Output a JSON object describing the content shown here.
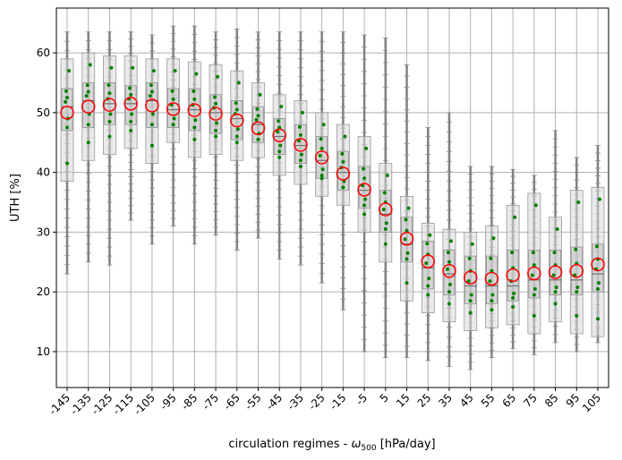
{
  "chart_data": {
    "type": "box",
    "xlabel": "circulation regimes - ",
    "xlabel_symbol": "ω",
    "xlabel_subscript": "500",
    "xlabel_unit": " [hPa/day]",
    "ylabel": "UTH [%]",
    "categories": [
      "-145",
      "-135",
      "-125",
      "-115",
      "-105",
      "-95",
      "-85",
      "-75",
      "-65",
      "-55",
      "-45",
      "-35",
      "-25",
      "-15",
      "-5",
      "5",
      "15",
      "25",
      "35",
      "45",
      "55",
      "65",
      "75",
      "85",
      "95",
      "105"
    ],
    "ylim": [
      4,
      67.5
    ],
    "yticks": [
      10,
      20,
      30,
      40,
      50,
      60
    ],
    "grid": true,
    "series": [
      {
        "marker": "red-open-circle",
        "values": [
          50,
          51,
          51.3,
          51.5,
          51.2,
          50.6,
          50.4,
          49.8,
          48.7,
          47.4,
          46.2,
          44.6,
          42.5,
          39.8,
          37.1,
          33.8,
          28.9,
          25.1,
          23.5,
          22.4,
          22.2,
          22.8,
          23.1,
          23.3,
          23.5,
          24.6
        ]
      },
      {
        "name": "box-median",
        "values": [
          51,
          52,
          51.5,
          51.5,
          52,
          50.5,
          50.5,
          50,
          49,
          48,
          46,
          44.5,
          42,
          40,
          37,
          33,
          28,
          24,
          23,
          21,
          21,
          21,
          22,
          22,
          22,
          23
        ]
      }
    ],
    "box_q1": [
      47,
      47.5,
      48,
      48,
      47.5,
      47.5,
      47,
      46.5,
      45.5,
      45,
      43,
      41.5,
      39,
      37,
      34,
      30,
      25,
      20.5,
      19.5,
      18,
      18,
      18.5,
      19,
      19.5,
      19.5,
      20
    ],
    "box_q3": [
      54,
      55,
      55,
      54.5,
      55,
      54,
      54,
      53,
      52,
      51,
      49,
      48,
      46,
      43.5,
      41,
      37,
      32.5,
      28.5,
      27,
      26,
      26,
      27,
      27,
      27,
      27.5,
      28
    ],
    "box_low": [
      38.5,
      42,
      43,
      44,
      41.5,
      45,
      42.5,
      43,
      42,
      42.5,
      39.5,
      38,
      36,
      34.5,
      30,
      25,
      18.5,
      16.5,
      15,
      13.5,
      14,
      14.5,
      13,
      15,
      13,
      12.5
    ],
    "box_high": [
      59,
      60,
      59.5,
      59.5,
      59,
      59,
      58.5,
      58,
      57,
      55,
      53,
      52,
      50,
      48,
      46,
      41.5,
      36,
      31.5,
      30.5,
      30,
      31,
      34.5,
      36.5,
      32.5,
      37,
      37.5
    ],
    "whisker_low": [
      23,
      25,
      24.5,
      32,
      28,
      31,
      28,
      29.5,
      27,
      29,
      25.5,
      24.5,
      21.5,
      17,
      10,
      9,
      9,
      8.5,
      7.5,
      7,
      9,
      10.5,
      9.5,
      11.5,
      10,
      11.5
    ],
    "whisker_high": [
      63.5,
      63.5,
      63.5,
      63.5,
      63,
      64.5,
      64.5,
      63.5,
      64,
      63.5,
      63.5,
      63.5,
      63.5,
      63.5,
      63,
      62.5,
      58,
      47.5,
      50,
      41,
      41,
      40.5,
      39.5,
      47,
      42.5,
      44.5
    ]
  }
}
